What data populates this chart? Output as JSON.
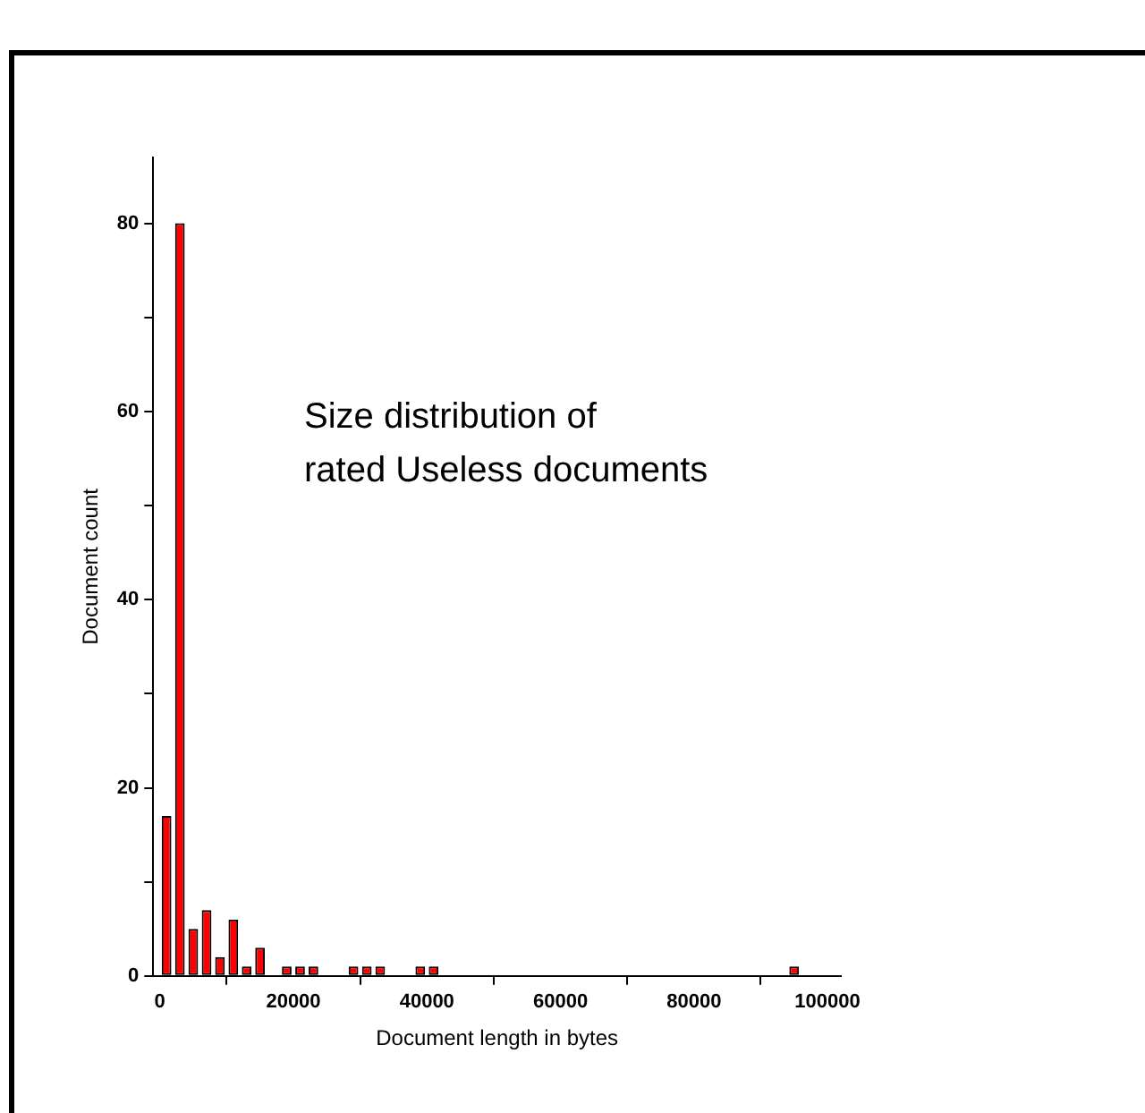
{
  "chart_data": {
    "type": "histogram",
    "title": "Size distribution of\nrated Useless documents",
    "xlabel": "Document length in bytes",
    "ylabel": "Document count",
    "bins": [
      0,
      2000,
      4000,
      6000,
      8000,
      10000,
      12000,
      14000,
      16000,
      18000,
      20000,
      22000,
      24000,
      26000,
      28000,
      30000,
      32000,
      34000,
      36000,
      38000,
      40000,
      42000,
      44000,
      46000,
      48000,
      50000,
      52000,
      54000,
      56000,
      58000,
      60000,
      62000,
      64000,
      66000,
      68000,
      70000,
      72000,
      74000,
      76000,
      78000,
      80000,
      82000,
      84000,
      86000,
      88000,
      90000,
      92000,
      94000,
      96000
    ],
    "values": [
      17,
      80,
      5,
      7,
      2,
      6,
      1,
      3,
      0,
      1,
      1,
      1,
      0,
      0,
      1,
      1,
      1,
      0,
      0,
      1,
      1,
      0,
      0,
      0,
      0,
      0,
      0,
      0,
      0,
      0,
      0,
      0,
      0,
      0,
      0,
      0,
      0,
      0,
      0,
      0,
      0,
      0,
      0,
      0,
      0,
      0,
      0,
      1
    ],
    "color": "#ff0000",
    "xlim": [
      -1000,
      102000
    ],
    "xticks": [
      0,
      20000,
      40000,
      60000,
      80000,
      100000
    ],
    "ylim": [
      0,
      87
    ],
    "yticks": [
      0,
      {
        "value": 10,
        "label": null
      },
      20,
      {
        "value": 30,
        "label": null
      },
      40,
      {
        "value": 50,
        "label": null
      },
      60,
      {
        "value": 70,
        "label": null
      },
      80
    ],
    "grid": false,
    "legend": false
  }
}
